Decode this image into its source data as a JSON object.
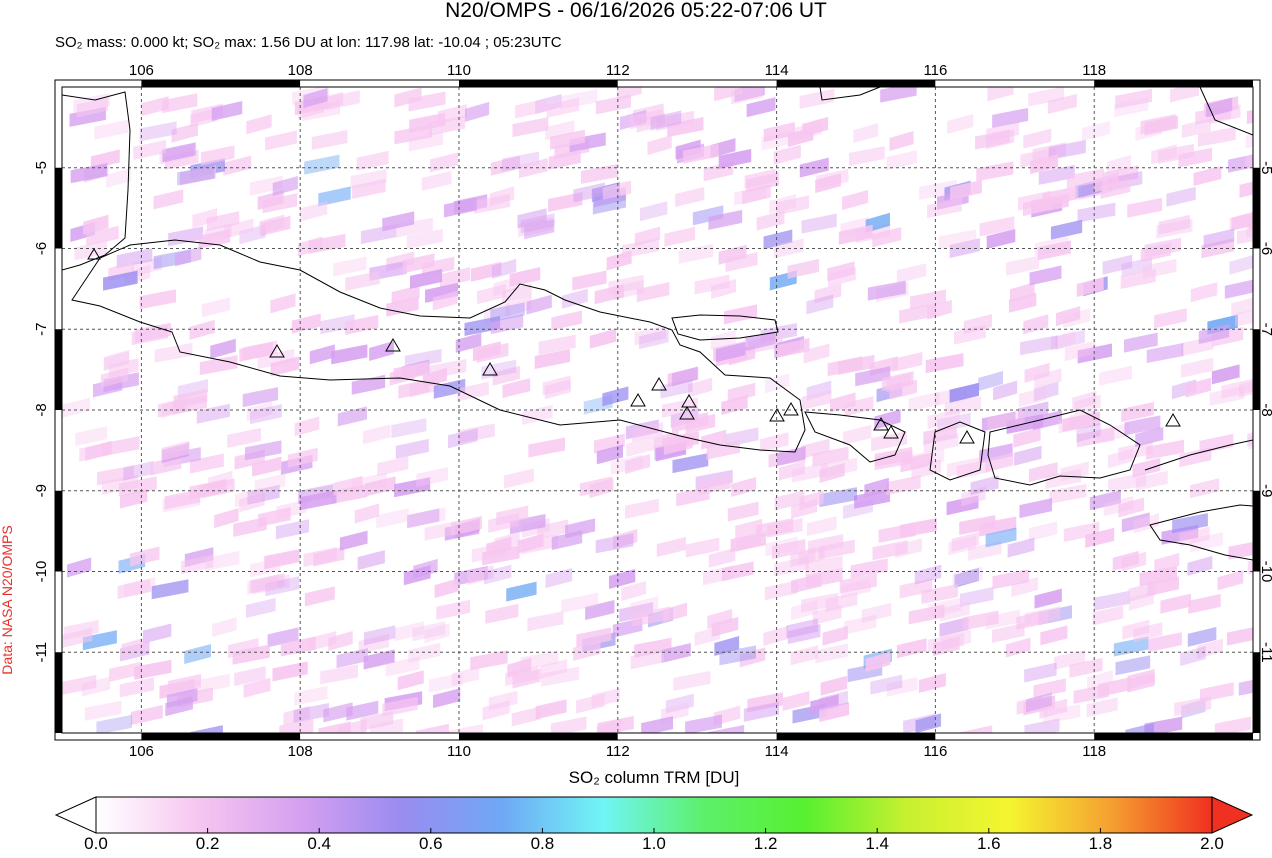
{
  "chart_data": {
    "type": "map",
    "title": "N20/OMPS - 06/16/2026 05:22-07:06 UT",
    "subtitle": "SO₂ mass: 0.000 kt; SO₂ max: 1.56 DU at lon: 117.98 lat: -10.04 ; 05:23UTC",
    "credit": "Data: NASA N20/OMPS",
    "xlim": [
      105,
      120
    ],
    "ylim": [
      -12,
      -4
    ],
    "xticks": [
      106,
      108,
      110,
      112,
      114,
      116,
      118
    ],
    "yticks": [
      -5,
      -6,
      -7,
      -8,
      -9,
      -10,
      -11
    ],
    "grid": true,
    "colorbar": {
      "label": "SO₂ column TRM [DU]",
      "lim": [
        0,
        2
      ],
      "ticks": [
        {
          "value": 0,
          "label": "0.0"
        },
        {
          "value": 0.2,
          "label": "0.2"
        },
        {
          "value": 0.4,
          "label": "0.4"
        },
        {
          "value": 0.6,
          "label": "0.6"
        },
        {
          "value": 0.8,
          "label": "0.8"
        },
        {
          "value": 1,
          "label": "1.0"
        },
        {
          "value": 1.2,
          "label": "1.2"
        },
        {
          "value": 1.4,
          "label": "1.4"
        },
        {
          "value": 1.6,
          "label": "1.6"
        },
        {
          "value": 1.8,
          "label": "1.8"
        },
        {
          "value": 2,
          "label": "2.0"
        }
      ],
      "colors": [
        "#ffffff",
        "#f7c6f0",
        "#d6a0f0",
        "#9a8cf0",
        "#6fa8f5",
        "#70f5f5",
        "#5cf06a",
        "#58f030",
        "#c8f030",
        "#f5f530",
        "#f5a030",
        "#f03020"
      ]
    }
  }
}
